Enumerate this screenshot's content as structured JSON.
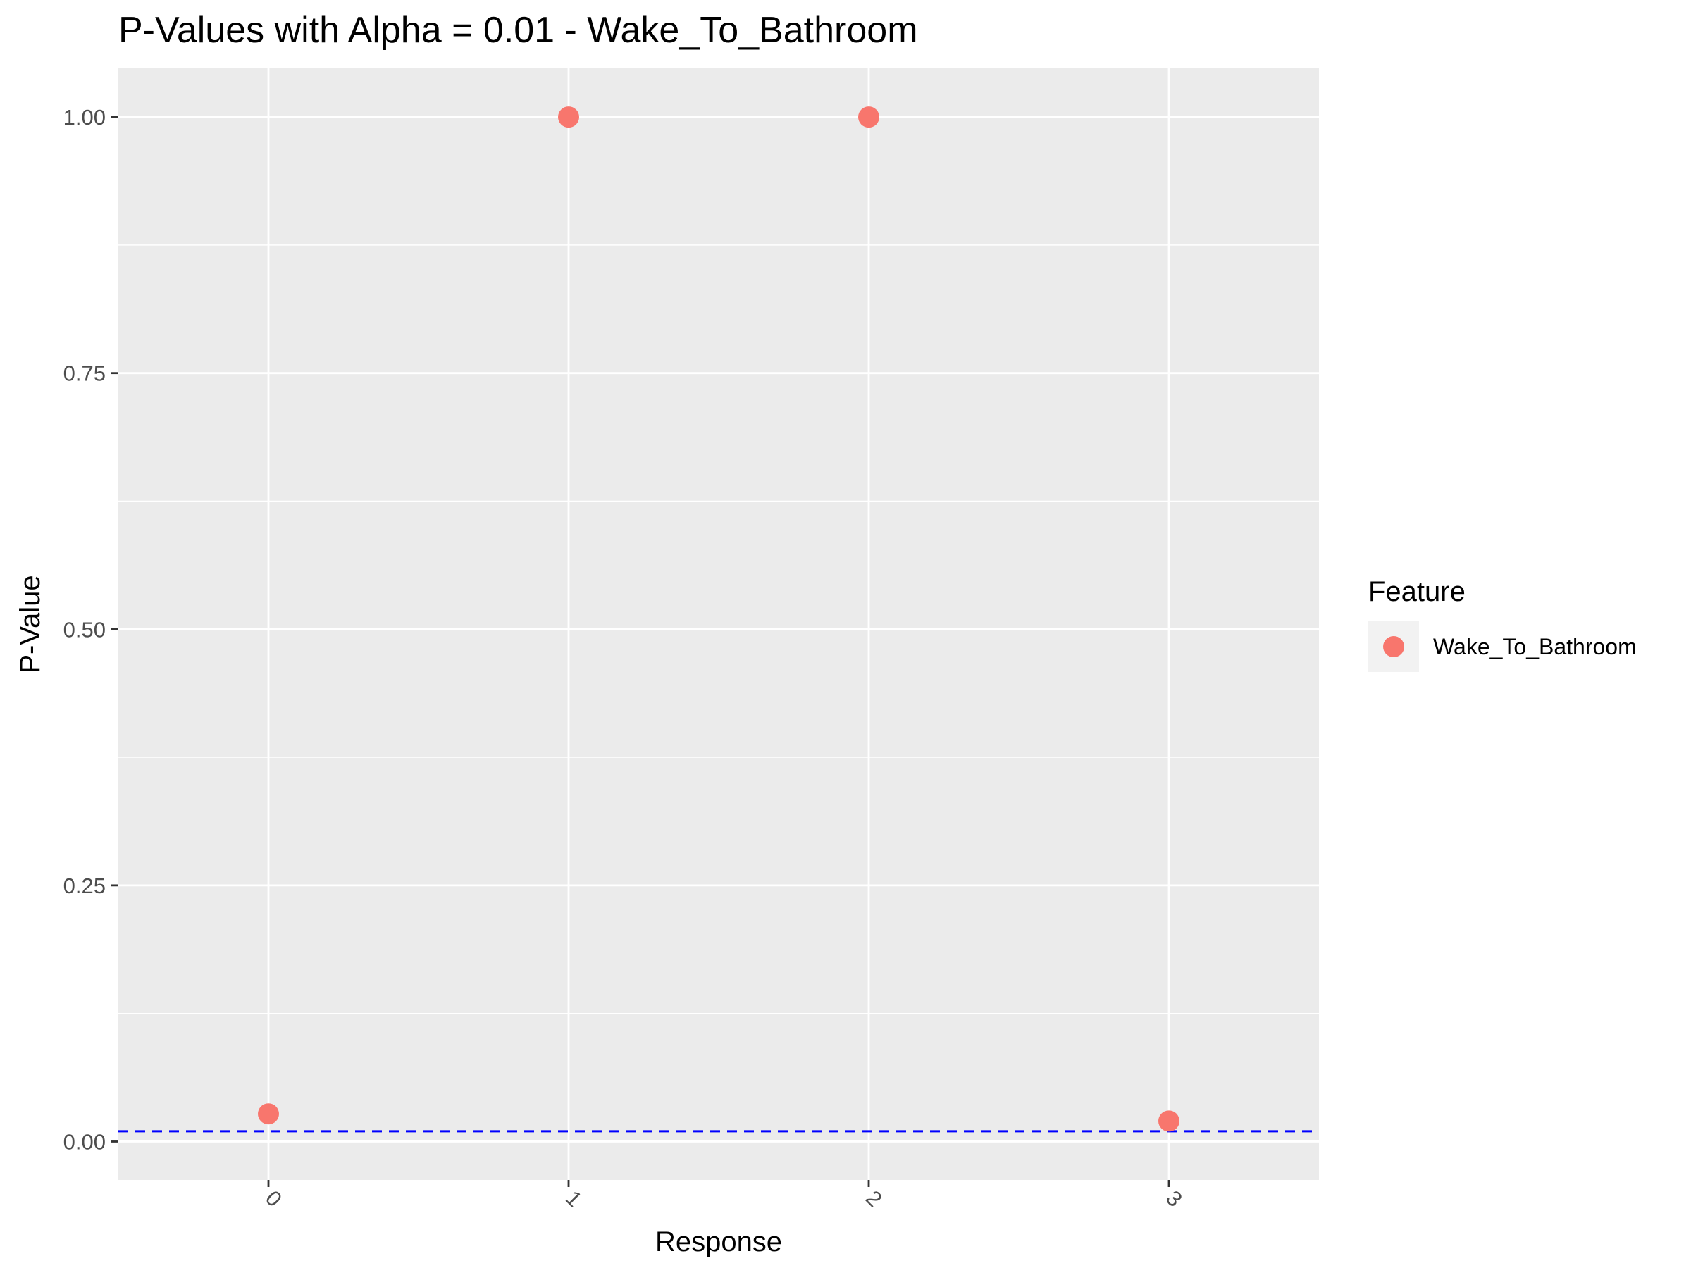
{
  "chart_data": {
    "type": "scatter",
    "title": "P-Values with Alpha = 0.01 - Wake_To_Bathroom",
    "xlabel": "Response",
    "ylabel": "P-Value",
    "x_categories": [
      "0",
      "1",
      "2",
      "3"
    ],
    "x_tick_rotation_deg": 45,
    "ylim": [
      -0.0375,
      1.0475
    ],
    "y_ticks": [
      0,
      0.25,
      0.5,
      0.75,
      1.0
    ],
    "y_tick_labels": [
      "0.00",
      "0.25",
      "0.50",
      "0.75",
      "1.00"
    ],
    "grid": true,
    "legend": {
      "title": "Feature",
      "position": "right"
    },
    "series": [
      {
        "name": "Wake_To_Bathroom",
        "color": "#f8766d",
        "points": [
          {
            "x": "0",
            "y": 0.027
          },
          {
            "x": "1",
            "y": 1.0
          },
          {
            "x": "2",
            "y": 1.0
          },
          {
            "x": "3",
            "y": 0.02
          }
        ]
      }
    ],
    "reference_line": {
      "y": 0.01,
      "style": "dashed",
      "color": "#0000ff"
    },
    "panel_background": "#ebebeb",
    "grid_color": "#ffffff"
  }
}
